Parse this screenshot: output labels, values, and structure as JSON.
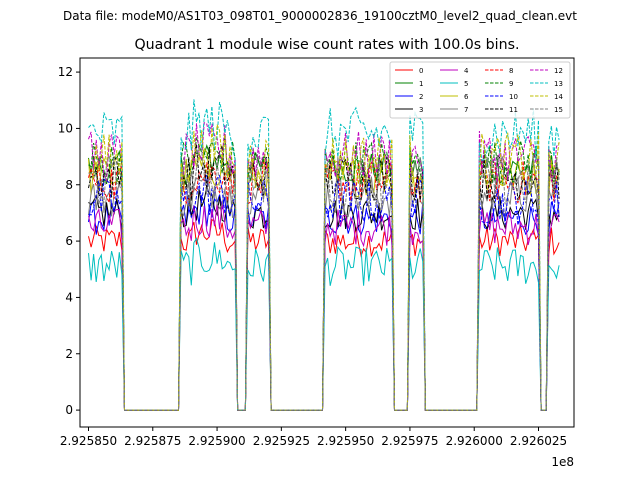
{
  "figure": {
    "suptitle": "Data file: modeM0/AS1T03_098T01_9000002836_19100cztM0_level2_quad_clean.evt"
  },
  "chart_data": {
    "type": "line",
    "title": "Quadrant 1 module wise count rates with 100.0s bins.",
    "xlabel": "",
    "ylabel": "",
    "x_offset_label": "1e8",
    "xlim": [
      292584670,
      292603880
    ],
    "ylim": [
      -0.6,
      12.5
    ],
    "x_ticks": [
      292585000,
      292587500,
      292590000,
      292592500,
      292595000,
      292597500,
      292600000,
      292602500
    ],
    "x_tick_labels": [
      "2.925850",
      "2.925875",
      "2.925900",
      "2.925925",
      "2.925950",
      "2.925975",
      "2.926000",
      "2.926025"
    ],
    "y_ticks": [
      0,
      2,
      4,
      6,
      8,
      10,
      12
    ],
    "y_tick_labels": [
      "0",
      "2",
      "4",
      "6",
      "8",
      "10",
      "12"
    ],
    "grid": false,
    "legend": {
      "placement": "top-right",
      "columns": 4
    },
    "segments": [
      {
        "start": 292585000,
        "end": 292586300,
        "on": true
      },
      {
        "start": 292586400,
        "end": 292588500,
        "on": false
      },
      {
        "start": 292588600,
        "end": 292590700,
        "on": true
      },
      {
        "start": 292590800,
        "end": 292591100,
        "on": false
      },
      {
        "start": 292591200,
        "end": 292592000,
        "on": true
      },
      {
        "start": 292592100,
        "end": 292594100,
        "on": false
      },
      {
        "start": 292594200,
        "end": 292596800,
        "on": true
      },
      {
        "start": 292596900,
        "end": 292597400,
        "on": false
      },
      {
        "start": 292597500,
        "end": 292598000,
        "on": true
      },
      {
        "start": 292598100,
        "end": 292600100,
        "on": false
      },
      {
        "start": 292600200,
        "end": 292602500,
        "on": true
      },
      {
        "start": 292602600,
        "end": 292602800,
        "on": false
      },
      {
        "start": 292602900,
        "end": 292603300,
        "on": true
      }
    ],
    "series": [
      {
        "name": "0",
        "color": "#ff0000",
        "dash": "solid",
        "level": 6.0
      },
      {
        "name": "1",
        "color": "#008000",
        "dash": "solid",
        "level": 8.6
      },
      {
        "name": "2",
        "color": "#0000ff",
        "dash": "solid",
        "level": 6.8
      },
      {
        "name": "3",
        "color": "#000000",
        "dash": "solid",
        "level": 7.0
      },
      {
        "name": "4",
        "color": "#bf00bf",
        "dash": "solid",
        "level": 6.5
      },
      {
        "name": "5",
        "color": "#00bfbf",
        "dash": "solid",
        "level": 5.1
      },
      {
        "name": "6",
        "color": "#bfbf00",
        "dash": "solid",
        "level": 8.3
      },
      {
        "name": "7",
        "color": "#808080",
        "dash": "solid",
        "level": 7.6
      },
      {
        "name": "8",
        "color": "#ff0000",
        "dash": "dashed",
        "level": 8.1
      },
      {
        "name": "9",
        "color": "#008000",
        "dash": "dashed",
        "level": 8.8
      },
      {
        "name": "10",
        "color": "#0000ff",
        "dash": "dashed",
        "level": 7.4
      },
      {
        "name": "11",
        "color": "#000000",
        "dash": "dashed",
        "level": 8.3
      },
      {
        "name": "12",
        "color": "#bf00bf",
        "dash": "dashed",
        "level": 9.0
      },
      {
        "name": "13",
        "color": "#00bfbf",
        "dash": "dashed",
        "level": 9.8
      },
      {
        "name": "14",
        "color": "#bfbf00",
        "dash": "dashed",
        "level": 8.9
      },
      {
        "name": "15",
        "color": "#808080",
        "dash": "dashed",
        "level": 8.1
      }
    ]
  }
}
